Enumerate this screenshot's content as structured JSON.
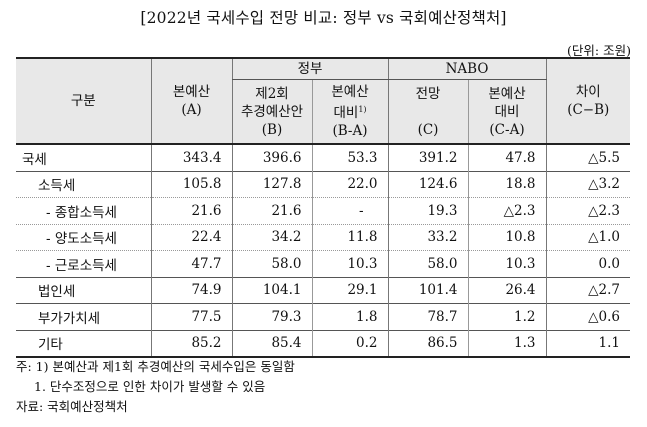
{
  "title": "[2022년 국세수입 전망 비교: 정부 vs 국회예산정책처]",
  "unit": "(단위: 조원)",
  "header": {
    "col_label": "구분",
    "budget": {
      "name": "본예산",
      "code": "(A)"
    },
    "gov_group": "정부",
    "gov_supp": {
      "line1": "제2회",
      "line2": "추경예산안",
      "code": "(B)"
    },
    "gov_diff": {
      "line1": "본예산",
      "line2": "대비",
      "sup": "1)",
      "code": "(B-A)"
    },
    "nabo_group": "NABO",
    "nabo_fcst": {
      "name": "전망",
      "code": "(C)"
    },
    "nabo_diff": {
      "line1": "본예산",
      "line2": "대비",
      "code": "(C-A)"
    },
    "diff": {
      "name": "차이",
      "code": "(C−B)"
    }
  },
  "rows": [
    {
      "label": "국세",
      "a": "343.4",
      "b": "396.6",
      "ba": "53.3",
      "c": "391.2",
      "ca": "47.8",
      "cb": "△5.5"
    },
    {
      "label": "소득세",
      "a": "105.8",
      "b": "127.8",
      "ba": "22.0",
      "c": "124.6",
      "ca": "18.8",
      "cb": "△3.2"
    },
    {
      "label": "- 종합소득세",
      "a": "21.6",
      "b": "21.6",
      "ba": "-",
      "c": "19.3",
      "ca": "△2.3",
      "cb": "△2.3"
    },
    {
      "label": "- 양도소득세",
      "a": "22.4",
      "b": "34.2",
      "ba": "11.8",
      "c": "33.2",
      "ca": "10.8",
      "cb": "△1.0"
    },
    {
      "label": "- 근로소득세",
      "a": "47.7",
      "b": "58.0",
      "ba": "10.3",
      "c": "58.0",
      "ca": "10.3",
      "cb": "0.0"
    },
    {
      "label": "법인세",
      "a": "74.9",
      "b": "104.1",
      "ba": "29.1",
      "c": "101.4",
      "ca": "26.4",
      "cb": "△2.7"
    },
    {
      "label": "부가가치세",
      "a": "77.5",
      "b": "79.3",
      "ba": "1.8",
      "c": "78.7",
      "ca": "1.2",
      "cb": "△0.6"
    },
    {
      "label": "기타",
      "a": "85.2",
      "b": "85.4",
      "ba": "0.2",
      "c": "86.5",
      "ca": "1.3",
      "cb": "1.1"
    }
  ],
  "notes": {
    "line1": "주: 1) 본예산과 제1회 추경예산의 국세수입은 동일함",
    "line2": "1. 단수조정으로 인한 차이가 발생할 수 있음",
    "source": "자료: 국회예산정책처"
  }
}
